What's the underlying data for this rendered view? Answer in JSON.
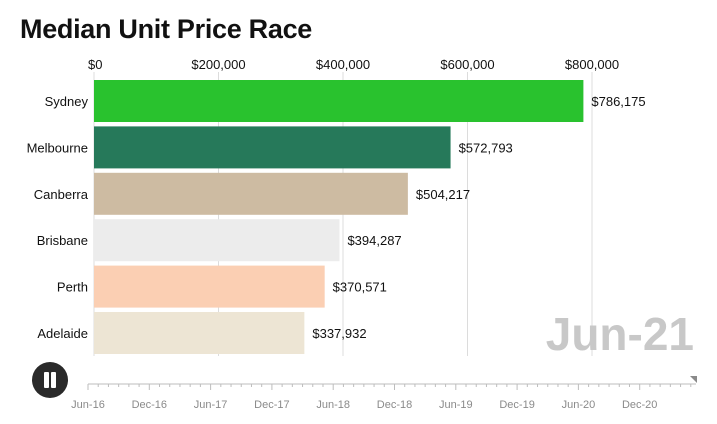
{
  "title": "Median Unit Price Race",
  "period": "Jun-21",
  "controls": {
    "pause_icon": "pause-icon"
  },
  "colors": {
    "grid": "#dcdcdc",
    "period": "#c8c8c8",
    "timeline": "#bdbdbd"
  },
  "timeline": {
    "labels": [
      "Jun-16",
      "Dec-16",
      "Jun-17",
      "Dec-17",
      "Jun-18",
      "Dec-18",
      "Jun-19",
      "Dec-19",
      "Jun-20",
      "Dec-20"
    ],
    "progress": 1.0
  },
  "chart_data": {
    "type": "bar",
    "orientation": "horizontal",
    "title": "Median Unit Price Race",
    "categories": [
      "Sydney",
      "Melbourne",
      "Canberra",
      "Brisbane",
      "Perth",
      "Adelaide"
    ],
    "values": [
      786175,
      572793,
      504217,
      394287,
      370571,
      337932
    ],
    "value_labels": [
      "$786,175",
      "$572,793",
      "$504,217",
      "$394,287",
      "$370,571",
      "$337,932"
    ],
    "bar_colors": [
      "#29c22e",
      "#26795a",
      "#cdbba2",
      "#ececec",
      "#fbcfb3",
      "#ede5d4"
    ],
    "xlim": [
      0,
      800000
    ],
    "xticks": [
      0,
      200000,
      400000,
      600000,
      800000
    ],
    "xtick_labels": [
      "$0",
      "$200,000",
      "$400,000",
      "$600,000",
      "$800,000"
    ],
    "xaxis_position": "top",
    "grid": true
  }
}
